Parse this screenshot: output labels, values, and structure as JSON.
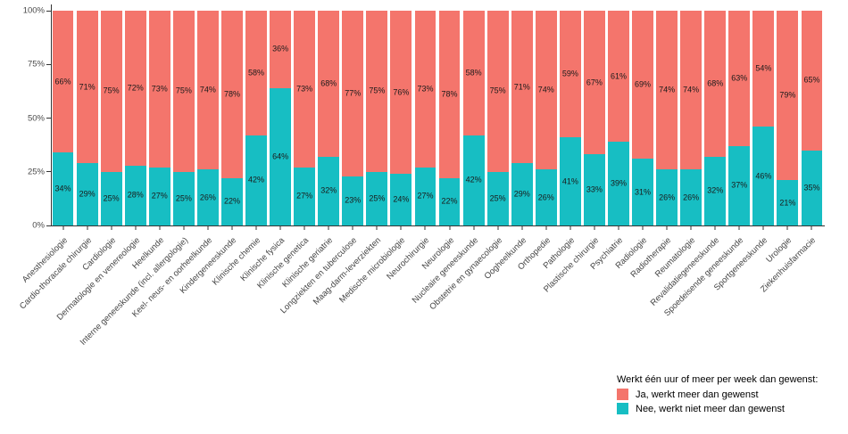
{
  "chart_data": {
    "type": "bar",
    "stacked": true,
    "percent": true,
    "title": "",
    "xlabel": "",
    "ylabel": "",
    "ylim": [
      0,
      100
    ],
    "grid": false,
    "y_ticks": [
      "0%",
      "25%",
      "50%",
      "75%",
      "100%"
    ],
    "categories": [
      "Anesthesiologie",
      "Cardio-thoracale chirurgie",
      "Cardiologie",
      "Dermatologie en venereologie",
      "Heelkunde",
      "Interne geneeskunde (incl. allergologie)",
      "Keel- neus- en oorheelkunde",
      "Kindergeneeskunde",
      "Klinische chemie",
      "Klinische fysica",
      "Klinische genetica",
      "Klinische geriatrie",
      "Longziekten en tuberculose",
      "Maag-darm-leverziekten",
      "Medische microbiologie",
      "Neurochirurgie",
      "Neurologie",
      "Nucleaire geneeskunde",
      "Obstetrie en gynaecologie",
      "Oogheelkunde",
      "Orthopedie",
      "Pathologie",
      "Plastische chirurgie",
      "Psychiatrie",
      "Radiologie",
      "Radiotherapie",
      "Reumatologie",
      "Revalidatiegeneeskunde",
      "Spoedeisende geneeskunde",
      "Sportgeneeskunde",
      "Urologie",
      "Ziekenhuisfarmacie"
    ],
    "series": [
      {
        "name": "Ja, werkt meer dan gewenst",
        "color": "#F4756C",
        "values": [
          66,
          71,
          75,
          72,
          73,
          75,
          74,
          78,
          58,
          36,
          73,
          68,
          77,
          75,
          76,
          73,
          78,
          58,
          75,
          71,
          74,
          59,
          67,
          61,
          69,
          74,
          74,
          68,
          63,
          54,
          79,
          65
        ]
      },
      {
        "name": "Nee, werkt niet meer dan gewenst",
        "color": "#17BEC3",
        "values": [
          34,
          29,
          25,
          28,
          27,
          25,
          26,
          22,
          42,
          64,
          27,
          32,
          23,
          25,
          24,
          27,
          22,
          42,
          25,
          29,
          26,
          41,
          33,
          39,
          31,
          26,
          26,
          32,
          37,
          46,
          21,
          35
        ]
      }
    ],
    "value_label_format": "{v}%",
    "legend_position": "bottom-right"
  },
  "legend": {
    "title": "Werkt één uur of meer per week dan gewenst:"
  }
}
